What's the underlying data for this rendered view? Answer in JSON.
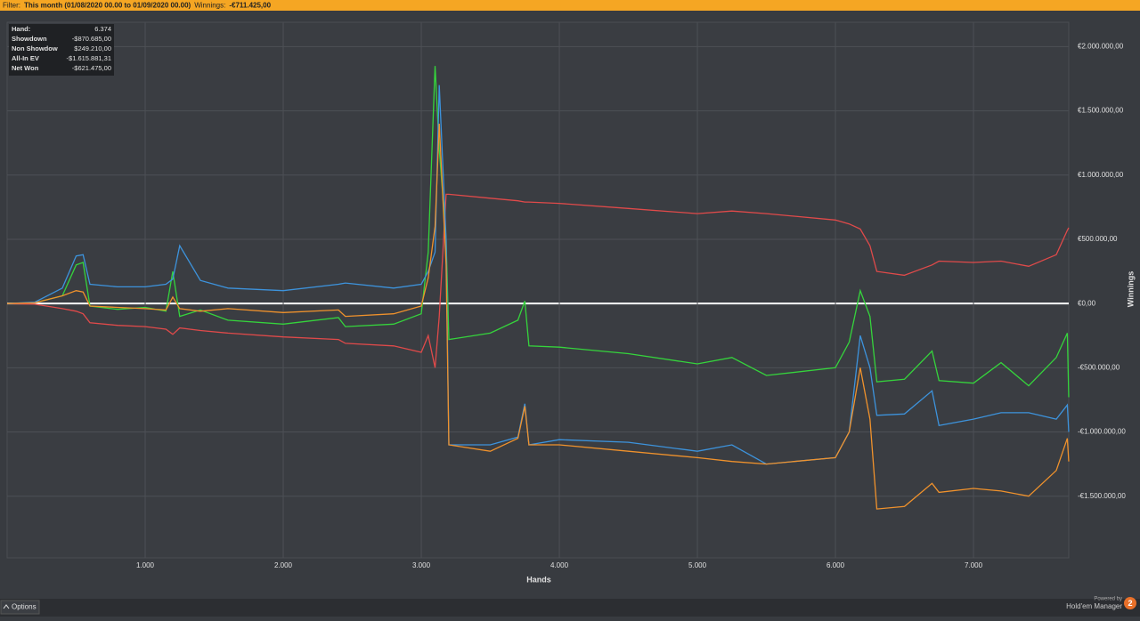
{
  "ui": {
    "filter_label": "Filter:",
    "filter_value": "This month (01/08/2020 00.00 to 01/09/2020 00.00)",
    "winnings_label": "Winnings:",
    "winnings_value": "-€711.425,00",
    "info_rows": [
      [
        "Hand:",
        "6.374"
      ],
      [
        "Showdown",
        "-$870.685,00"
      ],
      [
        "Non Showdow",
        "$249.210,00"
      ],
      [
        "All-In EV",
        "-$1.615.881,31"
      ],
      [
        "Net Won",
        "-$621.475,00"
      ]
    ],
    "options_button": "Options",
    "powered_by": "Powered by",
    "brand": "Hold'em Manager",
    "brand_version": "2"
  },
  "chart_data": {
    "type": "line",
    "x_label": "Hands",
    "y_label": "Winnings",
    "xlim": [
      0,
      7690
    ],
    "ylim": [
      -1980000,
      2190000
    ],
    "xticks": [
      {
        "value": 1000,
        "label": "1.000"
      },
      {
        "value": 2000,
        "label": "2.000"
      },
      {
        "value": 3000,
        "label": "3.000"
      },
      {
        "value": 4000,
        "label": "4.000"
      },
      {
        "value": 5000,
        "label": "5.000"
      },
      {
        "value": 6000,
        "label": "6.000"
      },
      {
        "value": 7000,
        "label": "7.000"
      }
    ],
    "yticks": [
      {
        "value": 2000000,
        "label": "€2.000.000,00"
      },
      {
        "value": 1500000,
        "label": "€1.500.000,00"
      },
      {
        "value": 1000000,
        "label": "€1.000.000,00"
      },
      {
        "value": 500000,
        "label": "€500.000,00"
      },
      {
        "value": 0,
        "label": "€0,00"
      },
      {
        "value": -500000,
        "label": "-€500.000,00"
      },
      {
        "value": -1000000,
        "label": "-€1.000.000,00"
      },
      {
        "value": -1500000,
        "label": "-€1.500.000,00"
      }
    ],
    "grid": true,
    "legend_position": "bottom",
    "x": [
      0,
      200,
      400,
      500,
      550,
      600,
      800,
      1000,
      1150,
      1200,
      1250,
      1400,
      1600,
      2000,
      2400,
      2450,
      2800,
      3000,
      3050,
      3100,
      3130,
      3180,
      3200,
      3500,
      3700,
      3750,
      3780,
      4000,
      4500,
      5000,
      5250,
      5500,
      6000,
      6100,
      6180,
      6250,
      6300,
      6500,
      6700,
      6750,
      7000,
      7200,
      7400,
      7600,
      7680,
      7690
    ],
    "series": [
      {
        "name": "Net Won",
        "color": "#35d43c",
        "values": [
          0,
          5000,
          60000,
          300000,
          320000,
          -20000,
          -45000,
          -30000,
          -60000,
          250000,
          -100000,
          -50000,
          -130000,
          -160000,
          -110000,
          -180000,
          -160000,
          -80000,
          400000,
          1850000,
          1200000,
          500000,
          -280000,
          -230000,
          -130000,
          20000,
          -330000,
          -340000,
          -390000,
          -470000,
          -420000,
          -560000,
          -500000,
          -300000,
          100000,
          -100000,
          -610000,
          -590000,
          -370000,
          -600000,
          -620000,
          -460000,
          -640000,
          -420000,
          -230000,
          -730000
        ]
      },
      {
        "name": "Non Showdown",
        "color": "#e04a4a",
        "values": [
          0,
          -5000,
          -40000,
          -60000,
          -80000,
          -150000,
          -170000,
          -180000,
          -200000,
          -240000,
          -190000,
          -210000,
          -230000,
          -260000,
          -280000,
          -310000,
          -330000,
          -380000,
          -250000,
          -500000,
          -100000,
          850000,
          850000,
          820000,
          800000,
          790000,
          790000,
          780000,
          740000,
          700000,
          720000,
          700000,
          650000,
          620000,
          580000,
          450000,
          250000,
          220000,
          300000,
          330000,
          320000,
          330000,
          290000,
          380000,
          570000,
          590000
        ]
      },
      {
        "name": "Showdown",
        "color": "#3d93dc",
        "values": [
          0,
          10000,
          120000,
          370000,
          380000,
          150000,
          130000,
          130000,
          150000,
          190000,
          450000,
          180000,
          120000,
          100000,
          150000,
          160000,
          120000,
          150000,
          250000,
          400000,
          1700000,
          500000,
          -1100000,
          -1100000,
          -1040000,
          -780000,
          -1100000,
          -1060000,
          -1080000,
          -1150000,
          -1100000,
          -1250000,
          -1200000,
          -1000000,
          -250000,
          -500000,
          -870000,
          -860000,
          -680000,
          -950000,
          -900000,
          -850000,
          -850000,
          -900000,
          -790000,
          -1000000
        ]
      },
      {
        "name": "All-In EV",
        "color": "#f0922c",
        "values": [
          0,
          5000,
          60000,
          100000,
          90000,
          -20000,
          -30000,
          -40000,
          -50000,
          50000,
          -40000,
          -60000,
          -40000,
          -70000,
          -50000,
          -100000,
          -80000,
          -20000,
          200000,
          600000,
          1400000,
          300000,
          -1100000,
          -1150000,
          -1050000,
          -800000,
          -1100000,
          -1100000,
          -1150000,
          -1200000,
          -1230000,
          -1250000,
          -1200000,
          -1000000,
          -500000,
          -900000,
          -1600000,
          -1580000,
          -1400000,
          -1470000,
          -1440000,
          -1460000,
          -1500000,
          -1300000,
          -1050000,
          -1230000
        ]
      }
    ]
  }
}
